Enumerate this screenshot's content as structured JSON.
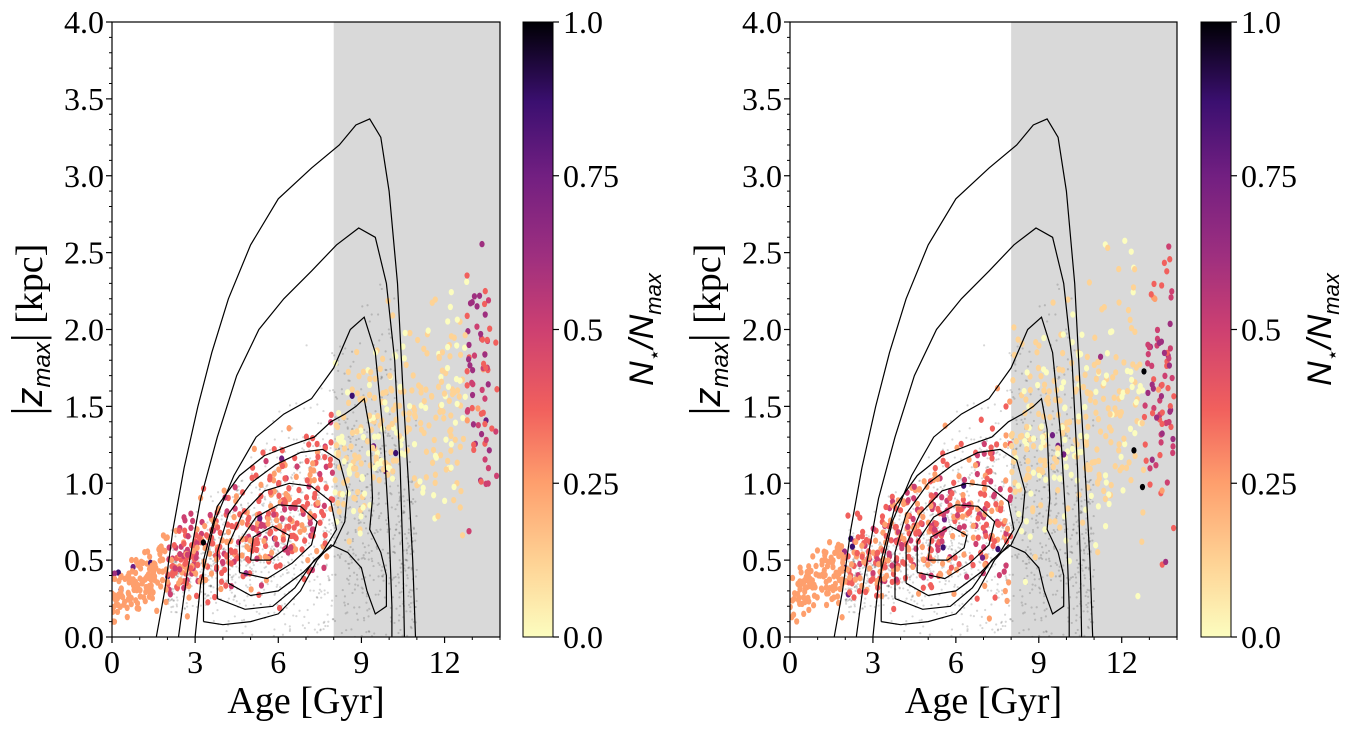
{
  "chart_data": [
    {
      "type": "scatter",
      "panel": "left",
      "xlabel": "Age [Gyr]",
      "ylabel": "|z_max| [kpc]",
      "ylabel_parts": {
        "open": "|",
        "z": "z",
        "sub": "max",
        "close": "|",
        "unit": "[kpc]"
      },
      "xlim": [
        0,
        14
      ],
      "ylim": [
        0,
        4
      ],
      "xticks": [
        0,
        3,
        6,
        9,
        12
      ],
      "xtick_labels": [
        "0",
        "3",
        "6",
        "9",
        "12"
      ],
      "yticks": [
        0.0,
        0.5,
        1.0,
        1.5,
        2.0,
        2.5,
        3.0,
        3.5,
        4.0
      ],
      "ytick_labels": [
        "0.0",
        "0.5",
        "1.0",
        "1.5",
        "2.0",
        "2.5",
        "3.0",
        "3.5",
        "4.0"
      ],
      "shaded_region": {
        "x": [
          8,
          14
        ],
        "color": "#d9d9d9"
      },
      "grid": false,
      "colorbar": {
        "label_parts": {
          "n": "N",
          "star": "⋆",
          "slash": "/",
          "n2": "N",
          "sub": "max"
        },
        "range": [
          0,
          1
        ],
        "ticks": [
          0.0,
          0.25,
          0.5,
          0.75,
          1.0
        ],
        "tick_labels": [
          "0.0",
          "0.25",
          "0.5",
          "0.75",
          "1.0"
        ],
        "colormap": "magma_r"
      },
      "contours": [
        [
          [
            1.6,
            0.0
          ],
          [
            1.9,
            0.3
          ],
          [
            2.2,
            0.7
          ],
          [
            2.6,
            1.1
          ],
          [
            3.1,
            1.5
          ],
          [
            3.6,
            1.85
          ],
          [
            4.2,
            2.2
          ],
          [
            5.0,
            2.55
          ],
          [
            6.0,
            2.85
          ],
          [
            7.2,
            3.05
          ],
          [
            8.2,
            3.2
          ],
          [
            8.8,
            3.33
          ],
          [
            9.3,
            3.37
          ],
          [
            9.7,
            3.25
          ],
          [
            10.0,
            2.9
          ],
          [
            10.3,
            2.3
          ],
          [
            10.5,
            1.6
          ],
          [
            10.7,
            1.0
          ],
          [
            10.85,
            0.5
          ],
          [
            10.95,
            0.0
          ]
        ],
        [
          [
            2.4,
            0.0
          ],
          [
            2.7,
            0.4
          ],
          [
            3.2,
            0.9
          ],
          [
            3.8,
            1.3
          ],
          [
            4.5,
            1.7
          ],
          [
            5.3,
            2.0
          ],
          [
            6.2,
            2.2
          ],
          [
            7.2,
            2.38
          ],
          [
            8.1,
            2.55
          ],
          [
            8.9,
            2.66
          ],
          [
            9.5,
            2.6
          ],
          [
            9.9,
            2.3
          ],
          [
            10.2,
            1.8
          ],
          [
            10.4,
            1.1
          ],
          [
            10.5,
            0.5
          ],
          [
            10.55,
            0.0
          ]
        ],
        [
          [
            3.0,
            0.0
          ],
          [
            3.2,
            0.35
          ],
          [
            3.7,
            0.75
          ],
          [
            4.4,
            1.05
          ],
          [
            5.2,
            1.3
          ],
          [
            6.2,
            1.45
          ],
          [
            7.2,
            1.55
          ],
          [
            8.0,
            1.75
          ],
          [
            8.6,
            2.0
          ],
          [
            9.1,
            2.08
          ],
          [
            9.5,
            1.85
          ],
          [
            9.8,
            1.3
          ],
          [
            10.0,
            0.7
          ],
          [
            10.1,
            0.2
          ],
          [
            10.1,
            0.0
          ]
        ],
        [
          [
            3.3,
            0.1
          ],
          [
            3.3,
            0.5
          ],
          [
            3.8,
            0.85
          ],
          [
            4.6,
            1.05
          ],
          [
            5.5,
            1.18
          ],
          [
            6.5,
            1.25
          ],
          [
            7.3,
            1.3
          ],
          [
            7.9,
            1.4
          ],
          [
            8.4,
            1.45
          ],
          [
            8.8,
            1.5
          ],
          [
            9.1,
            1.55
          ],
          [
            9.3,
            1.35
          ],
          [
            9.4,
            0.9
          ],
          [
            9.3,
            0.7
          ],
          [
            9.7,
            0.55
          ],
          [
            9.9,
            0.4
          ],
          [
            9.9,
            0.2
          ],
          [
            9.5,
            0.15
          ],
          [
            9.2,
            0.3
          ],
          [
            9.0,
            0.45
          ],
          [
            8.5,
            0.55
          ],
          [
            7.9,
            0.6
          ],
          [
            7.4,
            0.5
          ],
          [
            6.8,
            0.3
          ],
          [
            6.0,
            0.15
          ],
          [
            5.0,
            0.1
          ],
          [
            4.0,
            0.08
          ],
          [
            3.3,
            0.1
          ]
        ],
        [
          [
            3.8,
            0.25
          ],
          [
            3.8,
            0.55
          ],
          [
            4.2,
            0.8
          ],
          [
            5.0,
            1.0
          ],
          [
            5.9,
            1.12
          ],
          [
            6.8,
            1.2
          ],
          [
            7.6,
            1.22
          ],
          [
            8.2,
            1.15
          ],
          [
            8.5,
            0.95
          ],
          [
            8.4,
            0.75
          ],
          [
            8.0,
            0.6
          ],
          [
            7.3,
            0.5
          ],
          [
            6.6,
            0.32
          ],
          [
            5.8,
            0.2
          ],
          [
            4.8,
            0.18
          ],
          [
            3.8,
            0.25
          ]
        ],
        [
          [
            4.2,
            0.35
          ],
          [
            4.2,
            0.6
          ],
          [
            4.7,
            0.8
          ],
          [
            5.5,
            0.95
          ],
          [
            6.4,
            1.0
          ],
          [
            7.2,
            0.98
          ],
          [
            7.9,
            0.88
          ],
          [
            8.1,
            0.7
          ],
          [
            7.6,
            0.55
          ],
          [
            6.9,
            0.42
          ],
          [
            6.0,
            0.3
          ],
          [
            5.0,
            0.27
          ],
          [
            4.2,
            0.35
          ]
        ],
        [
          [
            4.6,
            0.42
          ],
          [
            4.6,
            0.62
          ],
          [
            5.2,
            0.78
          ],
          [
            6.0,
            0.86
          ],
          [
            6.8,
            0.85
          ],
          [
            7.4,
            0.75
          ],
          [
            7.2,
            0.6
          ],
          [
            6.5,
            0.48
          ],
          [
            5.6,
            0.38
          ],
          [
            4.6,
            0.42
          ]
        ],
        [
          [
            5.0,
            0.5
          ],
          [
            5.1,
            0.65
          ],
          [
            5.8,
            0.72
          ],
          [
            6.4,
            0.66
          ],
          [
            6.3,
            0.58
          ],
          [
            5.7,
            0.5
          ],
          [
            5.0,
            0.5
          ]
        ]
      ]
    },
    {
      "type": "scatter",
      "panel": "right",
      "xlabel": "Age [Gyr]",
      "ylabel": "|z_max| [kpc]",
      "ylabel_parts": {
        "open": "|",
        "z": "z",
        "sub": "max",
        "close": "|",
        "unit": "[kpc]"
      },
      "xlim": [
        0,
        14
      ],
      "ylim": [
        0,
        4
      ],
      "xticks": [
        0,
        3,
        6,
        9,
        12
      ],
      "xtick_labels": [
        "0",
        "3",
        "6",
        "9",
        "12"
      ],
      "yticks": [
        0.0,
        0.5,
        1.0,
        1.5,
        2.0,
        2.5,
        3.0,
        3.5,
        4.0
      ],
      "ytick_labels": [
        "0.0",
        "0.5",
        "1.0",
        "1.5",
        "2.0",
        "2.5",
        "3.0",
        "3.5",
        "4.0"
      ],
      "shaded_region": {
        "x": [
          8,
          14
        ],
        "color": "#d9d9d9"
      },
      "grid": false,
      "colorbar": {
        "label_parts": {
          "n": "N",
          "star": "⋆",
          "slash": "/",
          "n2": "N",
          "sub": "max"
        },
        "range": [
          0,
          1
        ],
        "ticks": [
          0.0,
          0.25,
          0.5,
          0.75,
          1.0
        ],
        "tick_labels": [
          "0.0",
          "0.25",
          "0.5",
          "0.75",
          "1.0"
        ],
        "colormap": "magma_r"
      },
      "contours": [
        [
          [
            1.6,
            0.0
          ],
          [
            1.9,
            0.3
          ],
          [
            2.2,
            0.7
          ],
          [
            2.6,
            1.1
          ],
          [
            3.1,
            1.5
          ],
          [
            3.6,
            1.85
          ],
          [
            4.2,
            2.2
          ],
          [
            5.0,
            2.55
          ],
          [
            6.0,
            2.85
          ],
          [
            7.2,
            3.05
          ],
          [
            8.2,
            3.2
          ],
          [
            8.8,
            3.33
          ],
          [
            9.3,
            3.37
          ],
          [
            9.7,
            3.25
          ],
          [
            10.0,
            2.9
          ],
          [
            10.3,
            2.3
          ],
          [
            10.5,
            1.6
          ],
          [
            10.7,
            1.0
          ],
          [
            10.85,
            0.5
          ],
          [
            10.95,
            0.0
          ]
        ],
        [
          [
            2.4,
            0.0
          ],
          [
            2.7,
            0.4
          ],
          [
            3.2,
            0.9
          ],
          [
            3.8,
            1.3
          ],
          [
            4.5,
            1.7
          ],
          [
            5.3,
            2.0
          ],
          [
            6.2,
            2.2
          ],
          [
            7.2,
            2.38
          ],
          [
            8.1,
            2.55
          ],
          [
            8.9,
            2.66
          ],
          [
            9.5,
            2.6
          ],
          [
            9.9,
            2.3
          ],
          [
            10.2,
            1.8
          ],
          [
            10.4,
            1.1
          ],
          [
            10.5,
            0.5
          ],
          [
            10.55,
            0.0
          ]
        ],
        [
          [
            3.0,
            0.0
          ],
          [
            3.2,
            0.35
          ],
          [
            3.7,
            0.75
          ],
          [
            4.4,
            1.05
          ],
          [
            5.2,
            1.3
          ],
          [
            6.2,
            1.45
          ],
          [
            7.2,
            1.55
          ],
          [
            8.0,
            1.75
          ],
          [
            8.6,
            2.0
          ],
          [
            9.1,
            2.08
          ],
          [
            9.5,
            1.85
          ],
          [
            9.8,
            1.3
          ],
          [
            10.0,
            0.7
          ],
          [
            10.1,
            0.2
          ],
          [
            10.1,
            0.0
          ]
        ],
        [
          [
            3.3,
            0.1
          ],
          [
            3.3,
            0.5
          ],
          [
            3.8,
            0.85
          ],
          [
            4.6,
            1.05
          ],
          [
            5.5,
            1.18
          ],
          [
            6.5,
            1.25
          ],
          [
            7.3,
            1.3
          ],
          [
            7.9,
            1.4
          ],
          [
            8.4,
            1.45
          ],
          [
            8.8,
            1.5
          ],
          [
            9.1,
            1.55
          ],
          [
            9.3,
            1.35
          ],
          [
            9.4,
            0.9
          ],
          [
            9.3,
            0.7
          ],
          [
            9.7,
            0.55
          ],
          [
            9.9,
            0.4
          ],
          [
            9.9,
            0.2
          ],
          [
            9.5,
            0.15
          ],
          [
            9.2,
            0.3
          ],
          [
            9.0,
            0.45
          ],
          [
            8.5,
            0.55
          ],
          [
            7.9,
            0.6
          ],
          [
            7.4,
            0.5
          ],
          [
            6.8,
            0.3
          ],
          [
            6.0,
            0.15
          ],
          [
            5.0,
            0.1
          ],
          [
            4.0,
            0.08
          ],
          [
            3.3,
            0.1
          ]
        ],
        [
          [
            3.8,
            0.25
          ],
          [
            3.8,
            0.55
          ],
          [
            4.2,
            0.8
          ],
          [
            5.0,
            1.0
          ],
          [
            5.9,
            1.12
          ],
          [
            6.8,
            1.2
          ],
          [
            7.6,
            1.22
          ],
          [
            8.2,
            1.15
          ],
          [
            8.5,
            0.95
          ],
          [
            8.4,
            0.75
          ],
          [
            8.0,
            0.6
          ],
          [
            7.3,
            0.5
          ],
          [
            6.6,
            0.32
          ],
          [
            5.8,
            0.2
          ],
          [
            4.8,
            0.18
          ],
          [
            3.8,
            0.25
          ]
        ],
        [
          [
            4.2,
            0.35
          ],
          [
            4.2,
            0.6
          ],
          [
            4.7,
            0.8
          ],
          [
            5.5,
            0.95
          ],
          [
            6.4,
            1.0
          ],
          [
            7.2,
            0.98
          ],
          [
            7.9,
            0.88
          ],
          [
            8.1,
            0.7
          ],
          [
            7.6,
            0.55
          ],
          [
            6.9,
            0.42
          ],
          [
            6.0,
            0.3
          ],
          [
            5.0,
            0.27
          ],
          [
            4.2,
            0.35
          ]
        ],
        [
          [
            4.6,
            0.42
          ],
          [
            4.6,
            0.62
          ],
          [
            5.2,
            0.78
          ],
          [
            6.0,
            0.86
          ],
          [
            6.8,
            0.85
          ],
          [
            7.4,
            0.75
          ],
          [
            7.2,
            0.6
          ],
          [
            6.5,
            0.48
          ],
          [
            5.6,
            0.38
          ],
          [
            4.6,
            0.42
          ]
        ],
        [
          [
            5.0,
            0.5
          ],
          [
            5.1,
            0.65
          ],
          [
            5.8,
            0.72
          ],
          [
            6.4,
            0.66
          ],
          [
            6.3,
            0.58
          ],
          [
            5.7,
            0.5
          ],
          [
            5.0,
            0.5
          ]
        ]
      ]
    }
  ]
}
